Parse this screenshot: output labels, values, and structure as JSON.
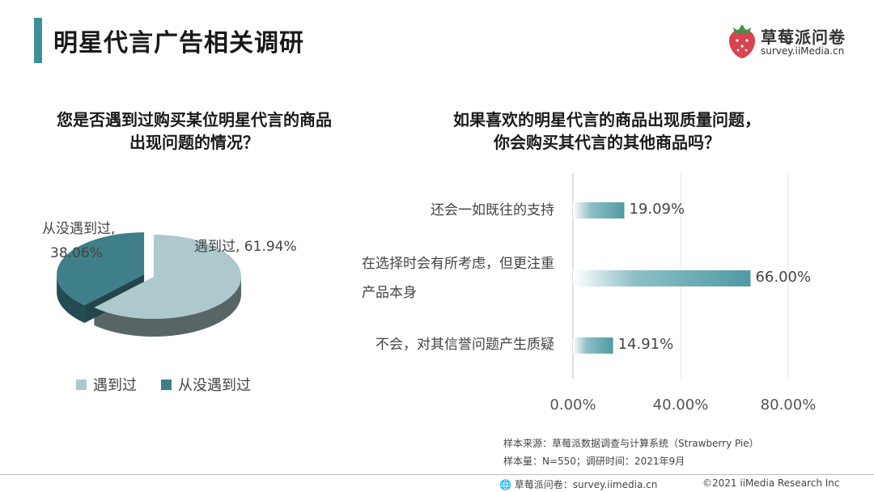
{
  "header": {
    "title": "明星代言广告相关调研",
    "logo_name": "草莓派问卷",
    "logo_url": "survey.iiMedia.cn",
    "logo_icon": "strawberry-icon"
  },
  "chart_data": [
    {
      "type": "pie",
      "title": "您是否遇到过购买某位明星代言的商品出现问题的情况？",
      "title_line1": "您是否遇到过购买某位明星代言的商品",
      "title_line2": "出现问题的情况？",
      "slices": [
        {
          "name": "遇到过",
          "value": 61.94,
          "label": "遇到过, 61.94%",
          "color": "#aec9cd"
        },
        {
          "name": "从没遇到过",
          "value": 38.06,
          "label_line1": "从没遇到过,",
          "label_line2": "38.06%",
          "color": "#3e7f89"
        }
      ],
      "legend": [
        "遇到过",
        "从没遇到过"
      ],
      "legend_placement": "bottom"
    },
    {
      "type": "bar",
      "orientation": "horizontal",
      "title": "如果喜欢的明星代言的商品出现质量问题，你会购买其代言的其他商品吗？",
      "title_line1": "如果喜欢的明星代言的商品出现质量问题，",
      "title_line2": "你会购买其代言的其他商品吗？",
      "categories": [
        "还会一如既往的支持",
        "在选择时会有所考虑，但更注重产品本身",
        "不会，对其信誉问题产生质疑"
      ],
      "category_lines": [
        [
          "还会一如既往的支持"
        ],
        [
          "在选择时会有所考虑，但更注重",
          "产品本身"
        ],
        [
          "不会，对其信誉问题产生质疑"
        ]
      ],
      "values": [
        19.09,
        66.0,
        14.91
      ],
      "value_labels": [
        "19.09%",
        "66.00%",
        "14.91%"
      ],
      "xlim": [
        0,
        80
      ],
      "xticks": [
        "0.00%",
        "40.00%",
        "80.00%"
      ],
      "grid": true,
      "bar_color": "#4f9aa3"
    }
  ],
  "source": {
    "line1": "样本来源：草莓派数据调查与计算系统（Strawberry Pie）",
    "line2": "样本量：N=550；调研时间：2021年9月"
  },
  "footer": {
    "left": "草莓派问卷：survey.iimedia.cn",
    "left_icon": "globe-icon",
    "right": "©2021  iiMedia Research  Inc"
  }
}
